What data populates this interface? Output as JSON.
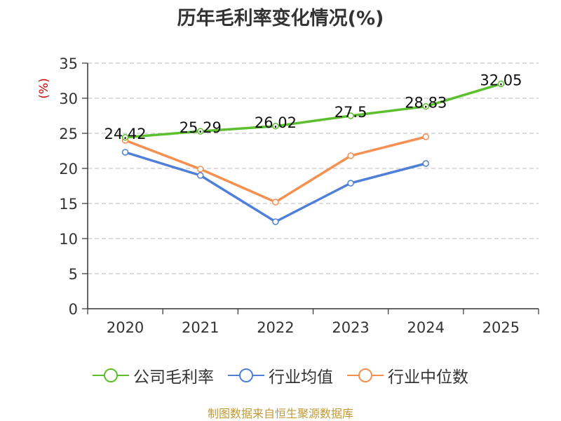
{
  "chart_data": {
    "type": "line",
    "title": "历年毛利率变化情况(%)",
    "ylabel": "(%)",
    "xlabel": "",
    "categories": [
      "2020",
      "2021",
      "2022",
      "2023",
      "2024",
      "2025"
    ],
    "ylim": [
      0,
      35
    ],
    "yticks": [
      0,
      5,
      10,
      15,
      20,
      25,
      30,
      35
    ],
    "grid": true,
    "legend_position": "bottom",
    "series": [
      {
        "name": "公司毛利率",
        "color": "#5cc02e",
        "values": [
          24.42,
          25.29,
          26.02,
          27.5,
          28.83,
          32.05
        ],
        "labels": [
          "24.42",
          "25.29",
          "26.02",
          "27.5",
          "28.83",
          "32.05"
        ]
      },
      {
        "name": "行业均值",
        "color": "#4f7fd9",
        "values": [
          22.3,
          19.0,
          12.4,
          17.9,
          20.7,
          null
        ]
      },
      {
        "name": "行业中位数",
        "color": "#f59050",
        "values": [
          24.0,
          19.9,
          15.2,
          21.8,
          24.5,
          null
        ]
      }
    ]
  },
  "source": "制图数据来自恒生聚源数据库"
}
